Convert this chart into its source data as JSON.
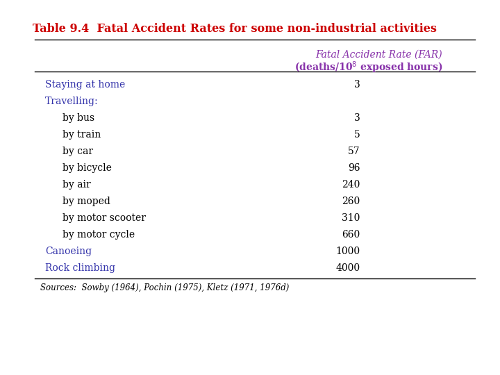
{
  "title": "Table 9.4  Fatal Accident Rates for some non-industrial activities",
  "title_color": "#cc0000",
  "col_header_line1": "Fatal Accident Rate (FAR)",
  "col_header_color": "#8833aa",
  "rows": [
    {
      "label": "Staying at home",
      "indent": 0,
      "value": "3",
      "label_color": "#3333aa",
      "is_section": false
    },
    {
      "label": "Travelling:",
      "indent": 0,
      "value": "",
      "label_color": "#3333aa",
      "is_section": true
    },
    {
      "label": "by bus",
      "indent": 1,
      "value": "3",
      "label_color": "#000000",
      "is_section": false
    },
    {
      "label": "by train",
      "indent": 1,
      "value": "5",
      "label_color": "#000000",
      "is_section": false
    },
    {
      "label": "by car",
      "indent": 1,
      "value": "57",
      "label_color": "#000000",
      "is_section": false
    },
    {
      "label": "by bicycle",
      "indent": 1,
      "value": "96",
      "label_color": "#000000",
      "is_section": false
    },
    {
      "label": "by air",
      "indent": 1,
      "value": "240",
      "label_color": "#000000",
      "is_section": false
    },
    {
      "label": "by moped",
      "indent": 1,
      "value": "260",
      "label_color": "#000000",
      "is_section": false
    },
    {
      "label": "by motor scooter",
      "indent": 1,
      "value": "310",
      "label_color": "#000000",
      "is_section": false
    },
    {
      "label": "by motor cycle",
      "indent": 1,
      "value": "660",
      "label_color": "#000000",
      "is_section": false
    },
    {
      "label": "Canoeing",
      "indent": 0,
      "value": "1000",
      "label_color": "#3333aa",
      "is_section": false
    },
    {
      "label": "Rock climbing",
      "indent": 0,
      "value": "4000",
      "label_color": "#3333aa",
      "is_section": false
    }
  ],
  "sources_text": "Sources:  Sowby (1964), Pochin (1975), Kletz (1971, 1976d)",
  "background_color": "#ffffff",
  "figsize": [
    7.2,
    5.4
  ],
  "dpi": 100
}
